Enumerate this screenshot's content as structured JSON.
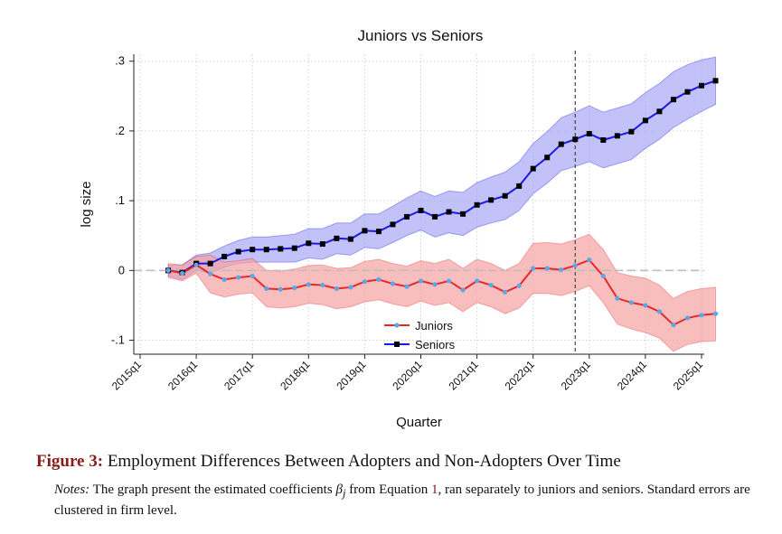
{
  "chart_data": {
    "type": "line",
    "title": "Juniors vs Seniors",
    "xlabel": "Quarter",
    "ylabel": "log size",
    "ylim": [
      -0.12,
      0.31
    ],
    "yticks": [
      -0.1,
      0,
      0.1,
      0.2,
      0.3
    ],
    "ytick_labels": [
      "-.1",
      "0",
      ".1",
      ".2",
      ".3"
    ],
    "xticks": [
      0,
      4,
      8,
      12,
      16,
      20,
      24,
      28,
      32,
      36,
      40
    ],
    "xtick_labels": [
      "2015q1",
      "2016q1",
      "2017q1",
      "2018q1",
      "2019q1",
      "2020q1",
      "2021q1",
      "2022q1",
      "2023q1",
      "2024q1",
      "2025q1"
    ],
    "x_start": 2,
    "reference_x": 31,
    "reference_y": 0,
    "grid": true,
    "legend_position": "bottom-center",
    "series": [
      {
        "name": "Juniors",
        "color": "#e8272b",
        "marker_color": "#5aa9e6",
        "band_color": "#f5a3a3",
        "values": [
          0.0,
          -0.004,
          0.008,
          -0.005,
          -0.013,
          -0.01,
          -0.008,
          -0.026,
          -0.027,
          -0.025,
          -0.02,
          -0.021,
          -0.026,
          -0.024,
          -0.016,
          -0.013,
          -0.019,
          -0.023,
          -0.015,
          -0.02,
          -0.015,
          -0.028,
          -0.015,
          -0.021,
          -0.031,
          -0.022,
          0.003,
          0.003,
          0.001,
          0.007,
          0.015,
          -0.008,
          -0.04,
          -0.046,
          -0.05,
          -0.059,
          -0.078,
          -0.068,
          -0.064,
          -0.062
        ],
        "lower": [
          -0.01,
          -0.015,
          -0.004,
          -0.032,
          -0.038,
          -0.034,
          -0.032,
          -0.052,
          -0.054,
          -0.052,
          -0.047,
          -0.049,
          -0.055,
          -0.052,
          -0.045,
          -0.042,
          -0.048,
          -0.052,
          -0.044,
          -0.05,
          -0.046,
          -0.059,
          -0.046,
          -0.052,
          -0.062,
          -0.054,
          -0.033,
          -0.033,
          -0.036,
          -0.03,
          -0.022,
          -0.046,
          -0.077,
          -0.084,
          -0.089,
          -0.097,
          -0.116,
          -0.106,
          -0.102,
          -0.101
        ],
        "upper": [
          0.01,
          0.008,
          0.02,
          0.022,
          0.012,
          0.014,
          0.017,
          0.0,
          -0.001,
          0.002,
          0.007,
          0.008,
          0.003,
          0.004,
          0.013,
          0.016,
          0.01,
          0.006,
          0.014,
          0.01,
          0.016,
          0.003,
          0.016,
          0.01,
          0.0,
          0.01,
          0.039,
          0.04,
          0.038,
          0.044,
          0.052,
          0.03,
          -0.003,
          -0.008,
          -0.011,
          -0.021,
          -0.04,
          -0.03,
          -0.026,
          -0.024
        ]
      },
      {
        "name": "Seniors",
        "color": "#1a1ae6",
        "marker_color": "#000000",
        "band_color": "#a8a8f5",
        "values": [
          0.0,
          -0.003,
          0.01,
          0.01,
          0.02,
          0.027,
          0.03,
          0.03,
          0.031,
          0.032,
          0.039,
          0.038,
          0.046,
          0.045,
          0.057,
          0.056,
          0.066,
          0.077,
          0.086,
          0.077,
          0.084,
          0.081,
          0.094,
          0.101,
          0.107,
          0.121,
          0.146,
          0.162,
          0.181,
          0.188,
          0.196,
          0.187,
          0.193,
          0.199,
          0.215,
          0.228,
          0.245,
          0.256,
          0.265,
          0.272
        ],
        "lower": [
          -0.008,
          -0.013,
          0.0,
          -0.004,
          0.005,
          0.01,
          0.012,
          0.012,
          0.012,
          0.012,
          0.018,
          0.016,
          0.024,
          0.022,
          0.033,
          0.031,
          0.04,
          0.05,
          0.058,
          0.048,
          0.054,
          0.05,
          0.062,
          0.068,
          0.073,
          0.086,
          0.11,
          0.125,
          0.143,
          0.149,
          0.156,
          0.147,
          0.153,
          0.159,
          0.175,
          0.188,
          0.205,
          0.217,
          0.228,
          0.238
        ],
        "upper": [
          0.008,
          0.008,
          0.022,
          0.025,
          0.035,
          0.043,
          0.048,
          0.048,
          0.05,
          0.052,
          0.06,
          0.06,
          0.068,
          0.068,
          0.081,
          0.081,
          0.092,
          0.104,
          0.114,
          0.106,
          0.114,
          0.112,
          0.126,
          0.134,
          0.141,
          0.156,
          0.182,
          0.199,
          0.219,
          0.227,
          0.236,
          0.227,
          0.233,
          0.239,
          0.255,
          0.268,
          0.285,
          0.295,
          0.302,
          0.306
        ]
      }
    ]
  },
  "caption": {
    "label": "Figure 3:",
    "text": "Employment Differences Between Adopters and Non-Adopters Over Time"
  },
  "notes": {
    "label": "Notes:",
    "text_before": "The graph present the estimated coefficients",
    "symbol": "β",
    "subscript": "j",
    "text_middle": "from Equation",
    "equation_ref": "1",
    "text_after": ", ran separately to juniors and seniors. Standard errors are clustered in firm level."
  }
}
